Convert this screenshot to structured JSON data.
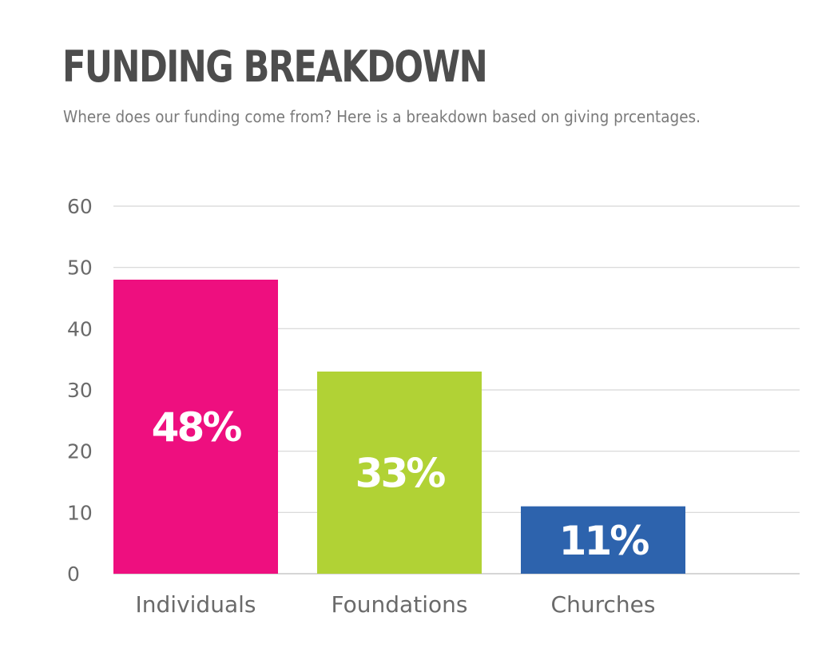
{
  "chart_data": {
    "type": "bar",
    "title": "FUNDING BREAKDOWN",
    "subtitle": "Where does our funding come from? Here is a breakdown based on giving prcentages.",
    "categories": [
      "Individuals",
      "Foundations",
      "Churches"
    ],
    "values": [
      48,
      33,
      11
    ],
    "data_labels": [
      "48%",
      "33%",
      "11%"
    ],
    "bar_colors": [
      "#ee0f7f",
      "#b1d235",
      "#2d63ad"
    ],
    "ylim": [
      0,
      60
    ],
    "yticks": [
      0,
      10,
      20,
      30,
      40,
      50,
      60
    ],
    "grid": true,
    "legend": "none",
    "xlabel": "",
    "ylabel": ""
  }
}
